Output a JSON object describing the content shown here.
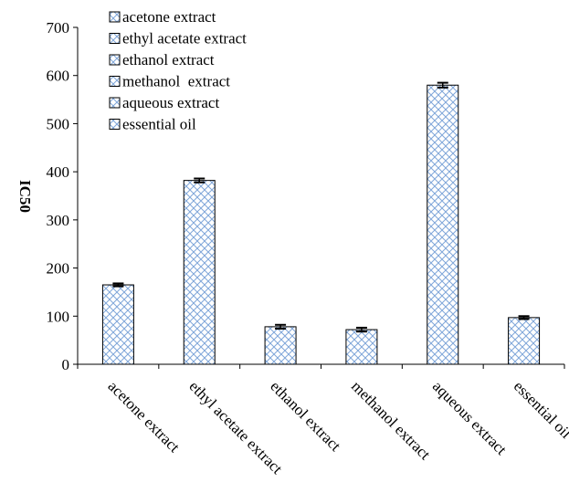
{
  "chart_data": {
    "type": "bar",
    "categories": [
      "acetone extract",
      "ethyl acetate extract",
      "ethanol extract",
      "methanol  extract",
      "aqueous extract",
      "essential oil"
    ],
    "values": [
      165,
      382,
      78,
      72,
      580,
      97
    ],
    "errors": [
      3,
      4,
      4,
      4,
      5,
      3
    ],
    "title": "",
    "xlabel": "",
    "ylabel": "IC50",
    "ylim": [
      0,
      700
    ],
    "yticks": [
      0,
      100,
      200,
      300,
      400,
      500,
      600,
      700
    ],
    "legend": {
      "placement": "top-left",
      "entries": [
        "acetone extract",
        "ethyl acetate extract",
        "ethanol extract",
        "methanol  extract",
        "aqueous extract",
        "essential oil"
      ]
    },
    "grid": false,
    "bar_pattern": "crosshatch",
    "colors": {
      "hatch": "#7fa6d9",
      "bar_edge": "#000000",
      "error_bar": "#000000"
    }
  }
}
